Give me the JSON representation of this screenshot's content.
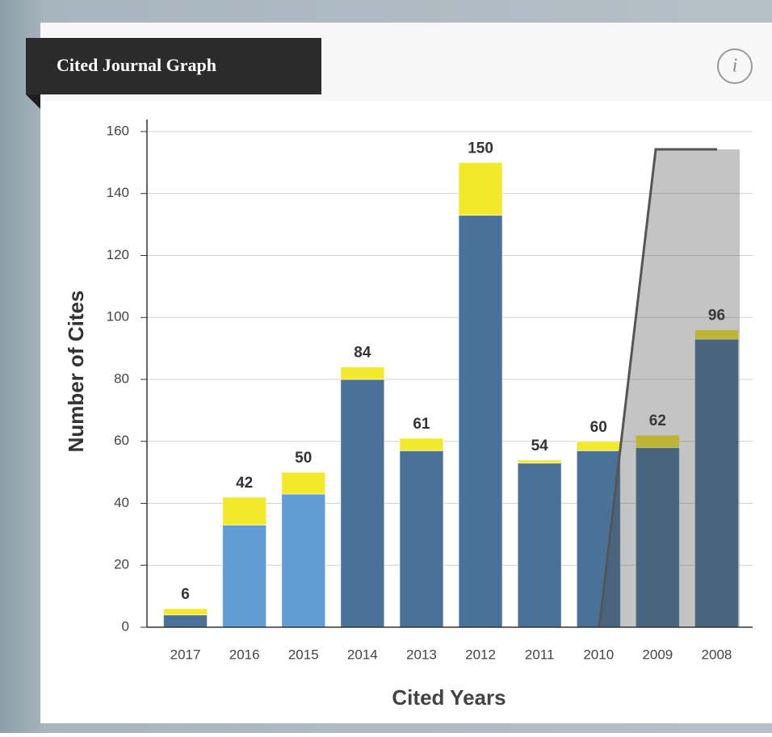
{
  "header": {
    "title": "Cited Journal Graph"
  },
  "chart_data": {
    "type": "bar",
    "stacked": true,
    "x_label": "Cited Years",
    "y_label": "Number of Cites",
    "categories": [
      "2017",
      "2016",
      "2015",
      "2014",
      "2013",
      "2012",
      "2011",
      "2010",
      "2009",
      "2008"
    ],
    "series": [
      {
        "color": "#4a7299",
        "colors": [
          "#4a7299",
          "#629cd4",
          "#629cd4",
          "#4a7299",
          "#4a7299",
          "#4a7299",
          "#4a7299",
          "#4a7299",
          "#4a7299",
          "#4a7299"
        ],
        "values": [
          4,
          33,
          43,
          80,
          57,
          133,
          53,
          57,
          58,
          93
        ]
      },
      {
        "color": "#f2e92a",
        "values": [
          2,
          9,
          7,
          4,
          4,
          17,
          1,
          3,
          4,
          3
        ]
      }
    ],
    "totals": [
      6,
      42,
      50,
      84,
      61,
      150,
      54,
      60,
      62,
      96
    ],
    "ylim": [
      0,
      160
    ],
    "yticks": [
      0,
      20,
      40,
      60,
      80,
      100,
      120,
      140,
      160
    ],
    "grid": true
  }
}
